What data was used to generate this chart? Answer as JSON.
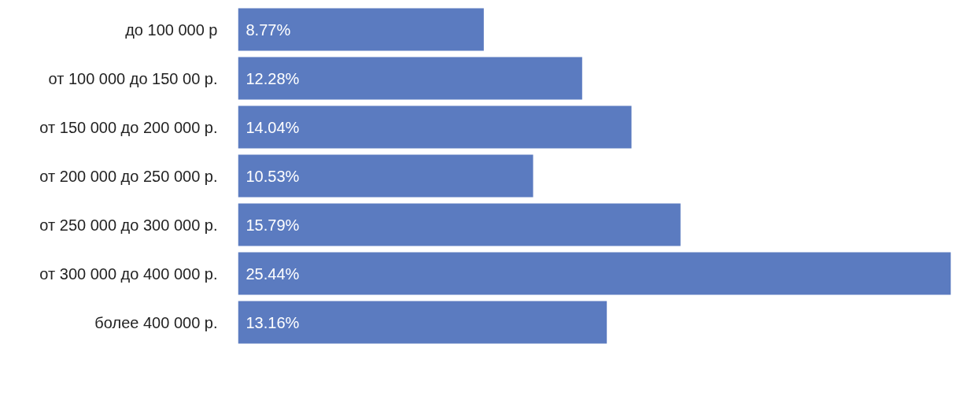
{
  "chart_data": {
    "type": "bar",
    "orientation": "horizontal",
    "categories": [
      "до 100 000 р",
      "от 100 000 до 150 00 р.",
      "от 150 000 до 200 000 р.",
      "от 200 000 до 250 000 р.",
      "от 250 000 до 300 000 р.",
      "от 300 000 до 400 000 р.",
      "более 400 000 р."
    ],
    "values": [
      8.77,
      12.28,
      14.04,
      10.53,
      15.79,
      25.44,
      13.16
    ],
    "value_labels": [
      "8.77%",
      "12.28%",
      "14.04%",
      "10.53%",
      "15.79%",
      "25.44%",
      "13.16%"
    ],
    "color": "#5b7bc0"
  }
}
